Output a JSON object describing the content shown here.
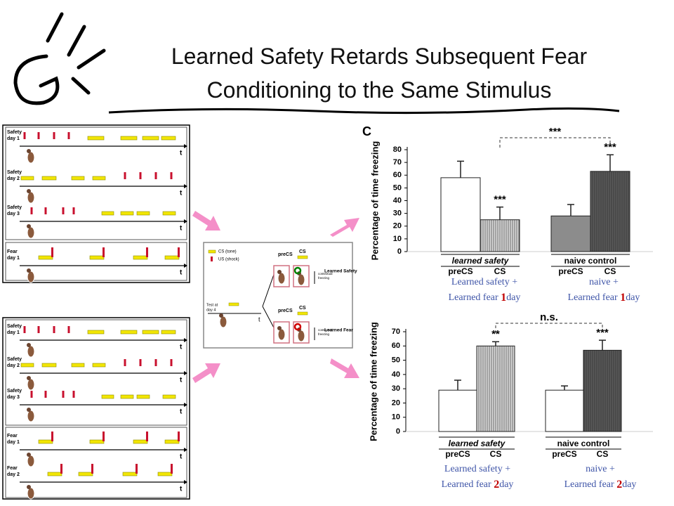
{
  "title": "Learned Safety Retards Subsequent Fear Conditioning to the Same Stimulus",
  "protocols": [
    {
      "rows": [
        {
          "label": [
            "Safety",
            "day 1"
          ],
          "axis": "t"
        },
        {
          "label": [
            "Safety",
            "day 2"
          ],
          "axis": "t"
        },
        {
          "label": [
            "Safety",
            "day 3"
          ],
          "axis": "t"
        },
        {
          "label": [
            "Fear",
            "day 1"
          ],
          "axis": "t"
        }
      ]
    },
    {
      "rows": [
        {
          "label": [
            "Safety",
            "day 1"
          ],
          "axis": "t"
        },
        {
          "label": [
            "Safety",
            "day 2"
          ],
          "axis": "t"
        },
        {
          "label": [
            "Safety",
            "day 3"
          ],
          "axis": "t"
        },
        {
          "label": [
            "Fear",
            "day 1"
          ],
          "axis": "t"
        },
        {
          "label": [
            "Fear",
            "day 2"
          ],
          "axis": "t"
        }
      ]
    }
  ],
  "schematic": {
    "legend": [
      "CS (tone)",
      "US (shock)"
    ],
    "test_label": [
      "Test at",
      "day 4"
    ],
    "axis": "t",
    "branches": [
      {
        "pre": "preCS",
        "cs": "CS",
        "readout": [
          "contextual",
          "freezing"
        ],
        "outcome": "Learned Safety"
      },
      {
        "pre": "preCS",
        "cs": "CS",
        "readout": [
          "contextual",
          "freezing"
        ],
        "outcome": "Learned Fear"
      }
    ]
  },
  "chart_data": [
    {
      "type": "bar",
      "panel_label": "C",
      "y_label": "Percentage of time freezing",
      "categories": [
        "learned safety",
        "naive control"
      ],
      "series": [
        {
          "name": "preCS",
          "colors": [
            "#ffffff",
            "#8c8c8c"
          ],
          "values": [
            58,
            28
          ],
          "errors": [
            13,
            9
          ]
        },
        {
          "name": "CS",
          "colors": [
            "#d9d9d9",
            "#5a5a5a"
          ],
          "hatched": true,
          "values": [
            25,
            63
          ],
          "errors": [
            10,
            13
          ]
        }
      ],
      "ylim": [
        0,
        80
      ],
      "yticks": [
        0,
        10,
        20,
        30,
        40,
        50,
        60,
        70,
        80
      ],
      "annotations": {
        "learned_safety_CS": "***",
        "naive_control_CS": "***",
        "comparison": "***"
      },
      "captions": [
        {
          "line1": "Learned safety  +",
          "line2": [
            "Learned fear ",
            "1",
            "day"
          ]
        },
        {
          "line1": "naive  +",
          "line2": [
            "Learned fear ",
            "1",
            "day"
          ]
        }
      ]
    },
    {
      "type": "bar",
      "y_label": "Percentage of time freezing",
      "categories": [
        "learned safety",
        "naive control"
      ],
      "series": [
        {
          "name": "preCS",
          "colors": [
            "#ffffff",
            "#ffffff"
          ],
          "values": [
            29,
            29
          ],
          "errors": [
            7,
            3
          ]
        },
        {
          "name": "CS",
          "colors": [
            "#d9d9d9",
            "#5a5a5a"
          ],
          "hatched": true,
          "values": [
            60,
            57
          ],
          "errors": [
            3,
            7
          ]
        }
      ],
      "ylim": [
        0,
        70
      ],
      "yticks": [
        0,
        10,
        20,
        30,
        40,
        50,
        60,
        70
      ],
      "annotations": {
        "learned_safety_CS": "**",
        "naive_control_CS": "***",
        "comparison": "n.s."
      },
      "captions": [
        {
          "line1": "Learned safety  +",
          "line2": [
            "Learned fear ",
            "2",
            "day"
          ]
        },
        {
          "line1": "naive  +",
          "line2": [
            "Learned fear ",
            "2",
            "day"
          ]
        }
      ]
    }
  ]
}
